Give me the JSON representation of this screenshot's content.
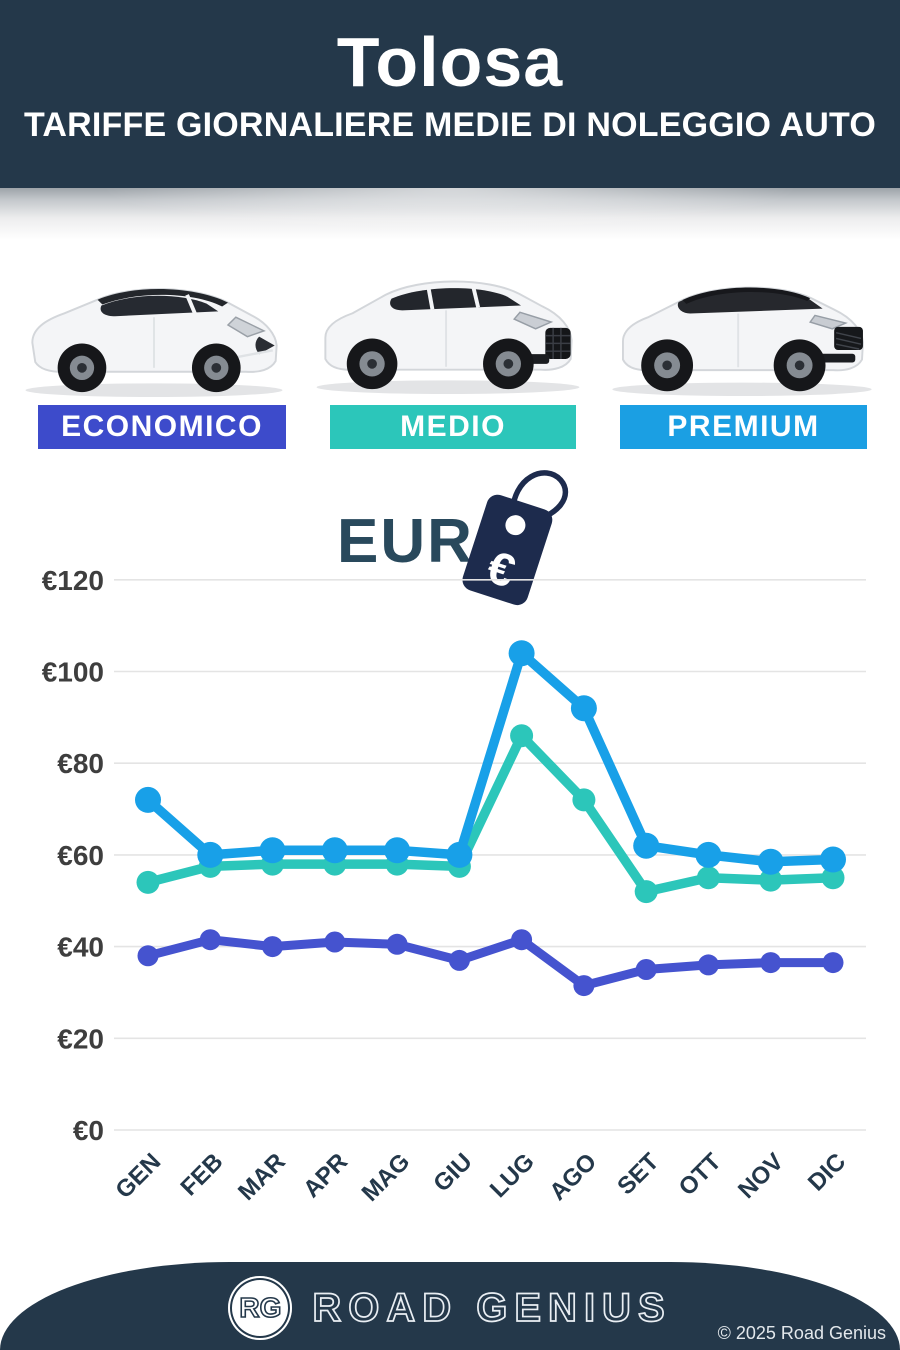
{
  "header": {
    "title": "Tolosa",
    "subtitle": "TARIFFE GIORNALIERE MEDIE DI NOLEGGIO AUTO"
  },
  "categories": [
    {
      "label": "ECONOMICO",
      "color": "#3d4bcb"
    },
    {
      "label": "MEDIO",
      "color": "#2cc6ba"
    },
    {
      "label": "PREMIUM",
      "color": "#1b9fe3"
    }
  ],
  "currency_heading": "EUR",
  "tag_symbol": "€",
  "chart_data": {
    "type": "line",
    "categories": [
      "GEN",
      "FEB",
      "MAR",
      "APR",
      "MAG",
      "GIU",
      "LUG",
      "AGO",
      "SET",
      "OTT",
      "NOV",
      "DIC"
    ],
    "series": [
      {
        "name": "PREMIUM",
        "color": "#18a0e8",
        "dot_radius": 13,
        "line_width": 9.5,
        "values": [
          72,
          60,
          61,
          61,
          61,
          60,
          104,
          92,
          62,
          60,
          58.5,
          59
        ]
      },
      {
        "name": "MEDIO",
        "color": "#2cc6ba",
        "dot_radius": 11.5,
        "line_width": 9.5,
        "values": [
          54,
          57.5,
          58,
          58,
          58,
          57.5,
          86,
          72,
          52,
          55,
          54.5,
          55
        ]
      },
      {
        "name": "ECONOMICO",
        "color": "#4553cf",
        "dot_radius": 10.5,
        "line_width": 9,
        "values": [
          38,
          41.5,
          40,
          41,
          40.5,
          37,
          41.5,
          31.5,
          35,
          36,
          36.5,
          36.5
        ]
      }
    ],
    "draw_order": [
      1,
      0,
      2
    ],
    "title": "EUR",
    "xlabel": "",
    "ylabel": "",
    "ylabel_prefix": "€",
    "yticks": [
      0,
      20,
      40,
      60,
      80,
      100,
      120
    ],
    "ylim": [
      0,
      128
    ],
    "grid": true,
    "legend_position": "none"
  },
  "footer": {
    "logo_initials": "RG",
    "brand": "ROAD GENIUS",
    "copyright": "© 2025 Road Genius"
  }
}
